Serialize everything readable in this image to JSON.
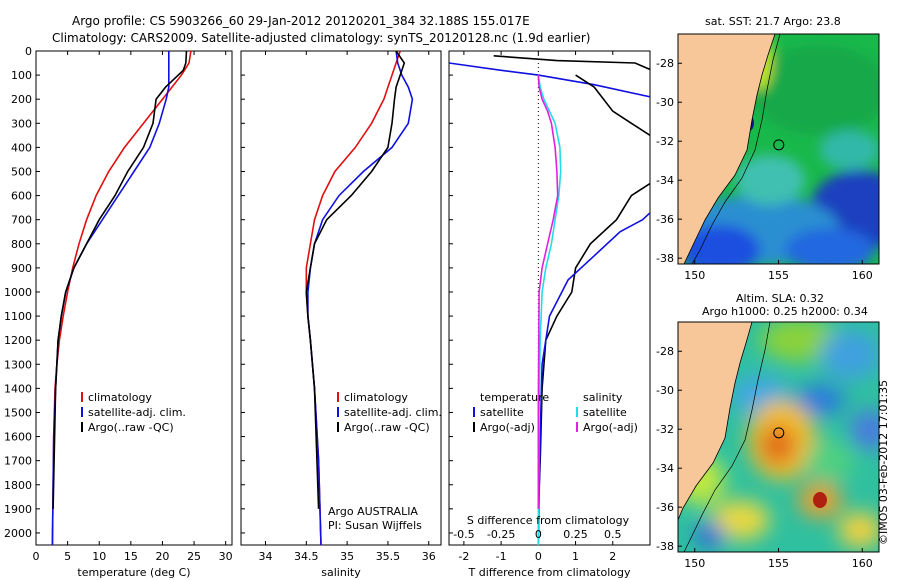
{
  "header": {
    "line1": "Argo profile: CS 5903266_60 29-Jan-2012 20120201_384 32.188S 155.017E",
    "line2": "Climatology: CARS2009. Satellite-adjusted climatology: synTS_20120128.nc (1.9d earlier)"
  },
  "credit": "©IMOS 03-Feb-2012 17:01:35",
  "colors": {
    "climatology": "#e01010",
    "satellite": "#1010e0",
    "argo": "#000000",
    "sal_satellite": "#22dde8",
    "sal_argo": "#e020e0",
    "land": "#f7c79a"
  },
  "chart_data": [
    {
      "id": "temperature",
      "type": "line",
      "xlabel": "temperature (deg C)",
      "ylabel": "",
      "xlim": [
        0,
        31
      ],
      "ylim": [
        2050,
        0
      ],
      "xticks": [
        0,
        5,
        10,
        15,
        20,
        25,
        30
      ],
      "yticks": [
        0,
        100,
        200,
        300,
        400,
        500,
        600,
        700,
        800,
        900,
        1000,
        1100,
        1200,
        1300,
        1400,
        1500,
        1600,
        1700,
        1800,
        1900,
        2000
      ],
      "legend": [
        "climatology",
        "satellite-adj. clim.",
        "Argo(..raw -QC)"
      ],
      "series": [
        {
          "name": "climatology",
          "color": "#e01010",
          "x": [
            24.5,
            24.2,
            23,
            20,
            17,
            14,
            11.5,
            9.5,
            8,
            6.8,
            5.8,
            5,
            4.3,
            3.7,
            3.3,
            3,
            2.8,
            2.6
          ],
          "y": [
            0,
            50,
            100,
            200,
            300,
            400,
            500,
            600,
            700,
            800,
            900,
            1000,
            1100,
            1200,
            1300,
            1400,
            1600,
            2050
          ]
        },
        {
          "name": "satellite-adj. clim.",
          "color": "#1010e0",
          "x": [
            21,
            21,
            21,
            21,
            20.6,
            19.5,
            18,
            15.5,
            13,
            10.5,
            8,
            6,
            4.7,
            4,
            3.5,
            3.1,
            2.8,
            2.6
          ],
          "y": [
            0,
            50,
            100,
            150,
            200,
            300,
            400,
            500,
            600,
            700,
            800,
            900,
            1000,
            1100,
            1200,
            1400,
            1600,
            2050
          ]
        },
        {
          "name": "Argo(..raw -QC)",
          "color": "#000000",
          "x": [
            23.8,
            23.7,
            23.3,
            20.5,
            19,
            18.5,
            17,
            14.5,
            12.5,
            10,
            8,
            6,
            4.7,
            4,
            3.5,
            3.1,
            2.7
          ],
          "y": [
            0,
            50,
            80,
            150,
            200,
            300,
            400,
            500,
            600,
            700,
            800,
            900,
            1000,
            1100,
            1200,
            1400,
            1900
          ]
        }
      ]
    },
    {
      "id": "salinity",
      "type": "line",
      "xlabel": "salinity",
      "xlim": [
        33.7,
        36.15
      ],
      "ylim": [
        2050,
        0
      ],
      "xticks": [
        34,
        34.5,
        35,
        35.5,
        36
      ],
      "legend": [
        "climatology",
        "satellite-adj. clim.",
        "Argo(..raw -QC)"
      ],
      "annotation": [
        "Argo AUSTRALIA",
        "PI: Susan Wijffels"
      ],
      "series": [
        {
          "name": "climatology",
          "color": "#e01010",
          "x": [
            35.65,
            35.6,
            35.55,
            35.5,
            35.45,
            35.3,
            35.1,
            34.85,
            34.7,
            34.6,
            34.55,
            34.5,
            34.5,
            34.52,
            34.55,
            34.6,
            34.65,
            34.68
          ],
          "y": [
            0,
            50,
            100,
            150,
            200,
            300,
            400,
            500,
            600,
            700,
            800,
            900,
            1000,
            1100,
            1200,
            1400,
            1700,
            2050
          ]
        },
        {
          "name": "satellite-adj. clim.",
          "color": "#1010e0",
          "x": [
            35.6,
            35.62,
            35.67,
            35.75,
            35.8,
            35.75,
            35.55,
            35.2,
            34.9,
            34.7,
            34.6,
            34.55,
            34.52,
            34.52,
            34.55,
            34.6,
            34.65,
            34.68
          ],
          "y": [
            0,
            50,
            100,
            150,
            200,
            300,
            400,
            500,
            600,
            700,
            800,
            900,
            1000,
            1100,
            1200,
            1400,
            1700,
            2050
          ]
        },
        {
          "name": "Argo(..raw -QC)",
          "color": "#000000",
          "x": [
            35.6,
            35.7,
            35.65,
            35.6,
            35.58,
            35.55,
            35.5,
            35.3,
            35.05,
            34.75,
            34.6,
            34.55,
            34.5,
            34.52,
            34.55,
            34.6,
            34.65
          ],
          "y": [
            0,
            50,
            100,
            150,
            200,
            300,
            400,
            500,
            600,
            700,
            800,
            900,
            1000,
            1100,
            1200,
            1400,
            1900
          ]
        }
      ]
    },
    {
      "id": "difference",
      "type": "line",
      "xlabel": "T difference from climatology",
      "x2label": "S difference from climatology",
      "xlim": [
        -2.4,
        3
      ],
      "ylim": [
        2050,
        0
      ],
      "xticks": [
        -2,
        -1,
        0,
        1,
        2
      ],
      "x2ticks": [
        "-0.5",
        "-0.25",
        "0",
        "0.25",
        "0.5"
      ],
      "legend_t_title": "temperature",
      "legend_s_title": "salinity",
      "legend_t": [
        "satellite",
        "Argo(-adj)"
      ],
      "legend_s": [
        "satellite",
        "Argo(-adj)"
      ],
      "series": [
        {
          "name": "T satellite",
          "color": "#1010e0",
          "x": [
            -2.4,
            -1,
            0,
            1.5,
            3,
            4
          ],
          "y": [
            50,
            80,
            100,
            140,
            190,
            220
          ]
        },
        {
          "name": "T Argo",
          "color": "#000000",
          "x": [
            -1.2,
            0.5,
            2.6,
            2.9,
            3.4
          ],
          "y": [
            20,
            40,
            50,
            70,
            100
          ]
        },
        {
          "name": "T Argo deep",
          "color": "#000000",
          "x": [
            1,
            1.5,
            2,
            2.5,
            3,
            3.5,
            3,
            2.5,
            2.1,
            1.4,
            1,
            0.9,
            0.5,
            0.2,
            0.1,
            0.05,
            0
          ],
          "y": [
            100,
            150,
            250,
            300,
            350,
            450,
            550,
            600,
            700,
            800,
            900,
            1000,
            1100,
            1200,
            1400,
            1700,
            1900
          ]
        },
        {
          "name": "T satellite deep",
          "color": "#1010e0",
          "x": [
            3.5,
            2.8,
            2.2,
            1.5,
            0.8,
            0.3,
            0.1,
            0.05,
            0
          ],
          "y": [
            600,
            700,
            750,
            850,
            950,
            1100,
            1300,
            1600,
            2050
          ]
        },
        {
          "name": "S satellite",
          "color": "#22dde8",
          "x": [
            0,
            0.05,
            0.15,
            0.3,
            0.45,
            0.58,
            0.6,
            0.55,
            0.45,
            0.35,
            0.2,
            0.1,
            0.05,
            0.02,
            0
          ],
          "y": [
            100,
            150,
            200,
            250,
            300,
            400,
            500,
            600,
            700,
            800,
            900,
            1000,
            1200,
            1500,
            2050
          ]
        },
        {
          "name": "S Argo",
          "color": "#e020e0",
          "x": [
            0,
            0.02,
            0.1,
            0.25,
            0.35,
            0.45,
            0.5,
            0.52,
            0.4,
            0.25,
            0.1,
            0.02,
            0,
            0
          ],
          "y": [
            100,
            150,
            200,
            250,
            300,
            400,
            500,
            600,
            700,
            800,
            900,
            1000,
            1500,
            1900
          ]
        }
      ]
    }
  ],
  "maps": [
    {
      "id": "sst-map",
      "title": "sat. SST: 21.7 Argo: 23.8",
      "xlim": [
        149,
        161
      ],
      "ylim": [
        -38.3,
        -26.5
      ],
      "xticks": [
        150,
        155,
        160
      ],
      "yticks": [
        -28,
        -30,
        -32,
        -34,
        -36,
        -38
      ],
      "marker": {
        "lon": 155.017,
        "lat": -32.188
      }
    },
    {
      "id": "sla-map",
      "title": "Altim. SLA: 0.32",
      "subtitle": "Argo h1000: 0.25 h2000: 0.34",
      "xlim": [
        149,
        161
      ],
      "ylim": [
        -38.3,
        -26.5
      ],
      "xticks": [
        150,
        155,
        160
      ],
      "yticks": [
        -28,
        -30,
        -32,
        -34,
        -36,
        -38
      ],
      "marker": {
        "lon": 155.017,
        "lat": -32.188
      }
    }
  ]
}
